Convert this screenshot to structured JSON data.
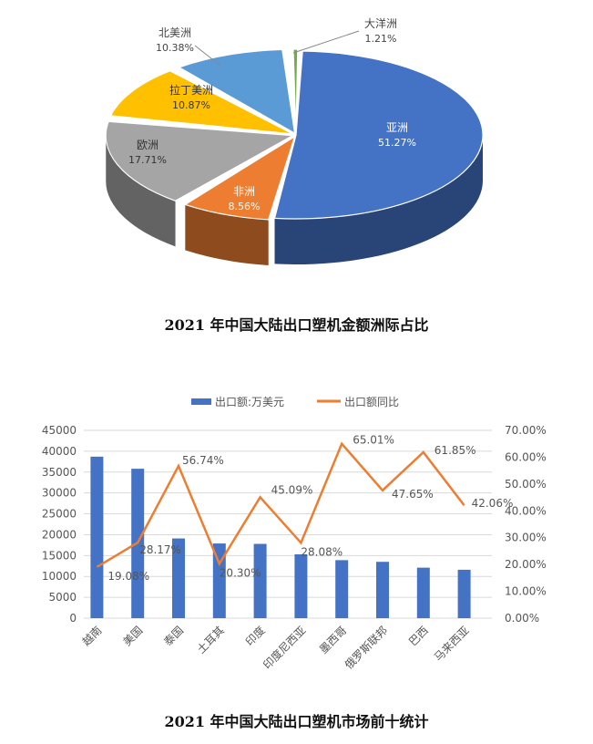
{
  "captions": {
    "pie": "2021 年中国大陆出口塑机金额洲际占比",
    "bar": "2021 年中国大陆出口塑机市场前十统计"
  },
  "chart_data": [
    {
      "type": "pie",
      "title": "",
      "slices": [
        {
          "label": "亚洲",
          "value": 51.27,
          "value_label": "51.27%",
          "color": "#4472C4"
        },
        {
          "label": "非洲",
          "value": 8.56,
          "value_label": "8.56%",
          "color": "#ED7D31"
        },
        {
          "label": "欧洲",
          "value": 17.71,
          "value_label": "17.71%",
          "color": "#A5A5A5"
        },
        {
          "label": "拉丁美洲",
          "value": 10.87,
          "value_label": "10.87%",
          "color": "#FFC000"
        },
        {
          "label": "北美洲",
          "value": 10.38,
          "value_label": "10.38%",
          "color": "#5B9BD5"
        },
        {
          "label": "大洋洲",
          "value": 1.21,
          "value_label": "1.21%",
          "color": "#70AD47"
        }
      ]
    },
    {
      "type": "bar",
      "title": "",
      "categories": [
        "越南",
        "美国",
        "泰国",
        "土耳其",
        "印度",
        "印度尼西亚",
        "墨西哥",
        "俄罗斯联邦",
        "巴西",
        "马来西亚"
      ],
      "series": [
        {
          "name": "出口额:万美元",
          "type": "bar",
          "axis": "left",
          "color": "#4472C4",
          "values": [
            38700,
            35800,
            19100,
            17900,
            17800,
            15300,
            13900,
            13500,
            12100,
            11600
          ]
        },
        {
          "name": "出口额同比",
          "type": "line",
          "axis": "right",
          "color": "#ED7D31",
          "values": [
            19.08,
            28.17,
            56.74,
            20.3,
            45.09,
            28.08,
            65.01,
            47.65,
            61.85,
            42.06
          ],
          "value_labels": [
            "19.08%",
            "28.17%",
            "56.74%",
            "20.30%",
            "45.09%",
            "28.08%",
            "65.01%",
            "47.65%",
            "61.85%",
            "42.06%"
          ]
        }
      ],
      "ylim": [
        0,
        45000
      ],
      "yticks": [
        "0",
        "5000",
        "10000",
        "15000",
        "20000",
        "25000",
        "30000",
        "35000",
        "40000",
        "45000"
      ],
      "y2lim": [
        0,
        70
      ],
      "y2ticks": [
        "0.00%",
        "10.00%",
        "20.00%",
        "30.00%",
        "40.00%",
        "50.00%",
        "60.00%",
        "70.00%"
      ],
      "grid": true,
      "legend": "top-center"
    }
  ]
}
